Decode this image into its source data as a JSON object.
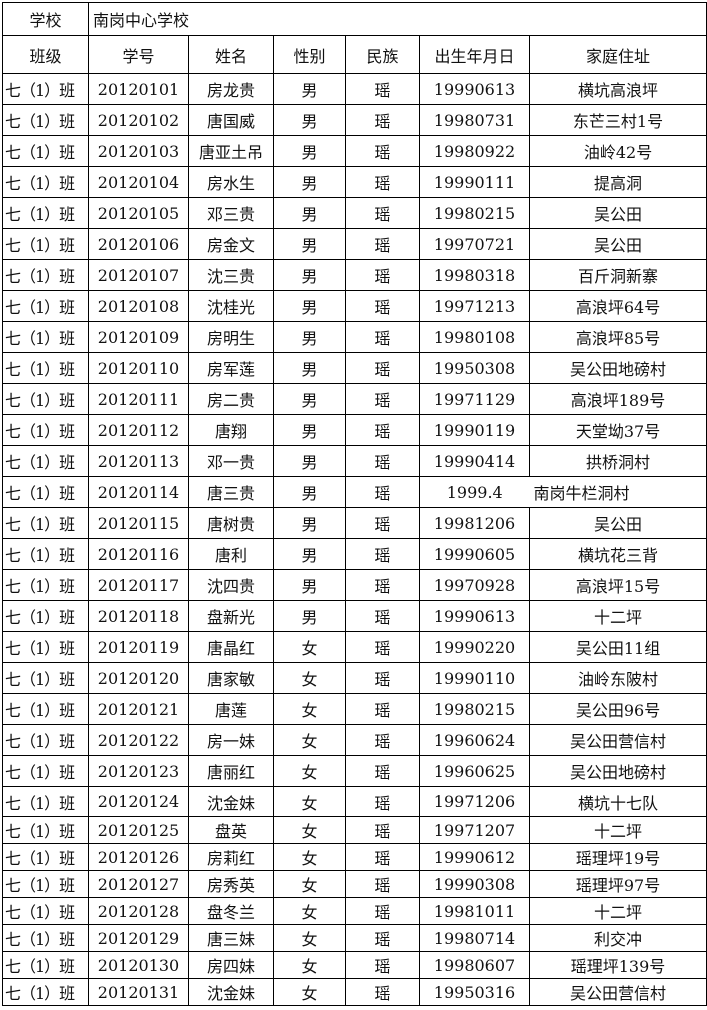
{
  "school_label": "学校",
  "school_name": "南岗中心学校",
  "headers": [
    "班级",
    "学号",
    "姓名",
    "性别",
    "民族",
    "出生年月日",
    "家庭住址"
  ],
  "rows": [
    [
      "七（1）班",
      "20120101",
      "房龙贵",
      "男",
      "瑶",
      "19990613",
      "横坑高浪坪"
    ],
    [
      "七（1）班",
      "20120102",
      "唐国威",
      "男",
      "瑶",
      "19980731",
      "东芒三村1号"
    ],
    [
      "七（1）班",
      "20120103",
      "唐亚土吊",
      "男",
      "瑶",
      "19980922",
      "油岭42号"
    ],
    [
      "七（1）班",
      "20120104",
      "房水生",
      "男",
      "瑶",
      "19990111",
      "提高洞"
    ],
    [
      "七（1）班",
      "20120105",
      "邓三贵",
      "男",
      "瑶",
      "19980215",
      "吴公田"
    ],
    [
      "七（1）班",
      "20120106",
      "房金文",
      "男",
      "瑶",
      "19970721",
      "吴公田"
    ],
    [
      "七（1）班",
      "20120107",
      "沈三贵",
      "男",
      "瑶",
      "19980318",
      "百斤洞新寨"
    ],
    [
      "七（1）班",
      "20120108",
      "沈桂光",
      "男",
      "瑶",
      "19971213",
      "高浪坪64号"
    ],
    [
      "七（1）班",
      "20120109",
      "房明生",
      "男",
      "瑶",
      "19980108",
      "高浪坪85号"
    ],
    [
      "七（1）班",
      "20120110",
      "房军莲",
      "男",
      "瑶",
      "19950308",
      "吴公田地磅村"
    ],
    [
      "七（1）班",
      "20120111",
      "房二贵",
      "男",
      "瑶",
      "19971129",
      "高浪坪189号"
    ],
    [
      "七（1）班",
      "20120112",
      "唐翔",
      "男",
      "瑶",
      "19990119",
      "天堂坳37号"
    ],
    [
      "七（1）班",
      "20120113",
      "邓一贵",
      "男",
      "瑶",
      "19990414",
      "拱桥洞村"
    ],
    [
      "七（1）班",
      "20120114",
      "唐三贵",
      "男",
      "瑶",
      "1999.4",
      "南岗牛栏洞村"
    ],
    [
      "七（1）班",
      "20120115",
      "唐树贵",
      "男",
      "瑶",
      "19981206",
      "吴公田"
    ],
    [
      "七（1）班",
      "20120116",
      "唐利",
      "男",
      "瑶",
      "19990605",
      "横坑花三背"
    ],
    [
      "七（1）班",
      "20120117",
      "沈四贵",
      "男",
      "瑶",
      "19970928",
      "高浪坪15号"
    ],
    [
      "七（1）班",
      "20120118",
      "盘新光",
      "男",
      "瑶",
      "19990613",
      "十二坪"
    ],
    [
      "七（1）班",
      "20120119",
      "唐晶红",
      "女",
      "瑶",
      "19990220",
      "吴公田11组"
    ],
    [
      "七（1）班",
      "20120120",
      "唐家敏",
      "女",
      "瑶",
      "19990110",
      "油岭东陂村"
    ],
    [
      "七（1）班",
      "20120121",
      "唐莲",
      "女",
      "瑶",
      "19980215",
      "吴公田96号"
    ],
    [
      "七（1）班",
      "20120122",
      "房一妹",
      "女",
      "瑶",
      "19960624",
      "吴公田营信村"
    ],
    [
      "七（1）班",
      "20120123",
      "唐丽红",
      "女",
      "瑶",
      "19960625",
      "吴公田地磅村"
    ],
    [
      "七（1）班",
      "20120124",
      "沈金妹",
      "女",
      "瑶",
      "19971206",
      "横坑十七队"
    ],
    [
      "七（1）班",
      "20120125",
      "盘英",
      "女",
      "瑶",
      "19971207",
      "十二坪"
    ],
    [
      "七（1）班",
      "20120126",
      "房莉红",
      "女",
      "瑶",
      "19990612",
      "瑶理坪19号"
    ],
    [
      "七（1）班",
      "20120127",
      "房秀英",
      "女",
      "瑶",
      "19990308",
      "瑶理坪97号"
    ],
    [
      "七（1）班",
      "20120128",
      "盘冬兰",
      "女",
      "瑶",
      "19981011",
      "十二坪"
    ],
    [
      "七（1）班",
      "20120129",
      "唐三妹",
      "女",
      "瑶",
      "19980714",
      "利交冲"
    ],
    [
      "七（1）班",
      "20120130",
      "房四妹",
      "女",
      "瑶",
      "19980607",
      "瑶理坪139号"
    ],
    [
      "七（1）班",
      "20120131",
      "沈金妹",
      "女",
      "瑶",
      "19950316",
      "吴公田营信村"
    ]
  ]
}
